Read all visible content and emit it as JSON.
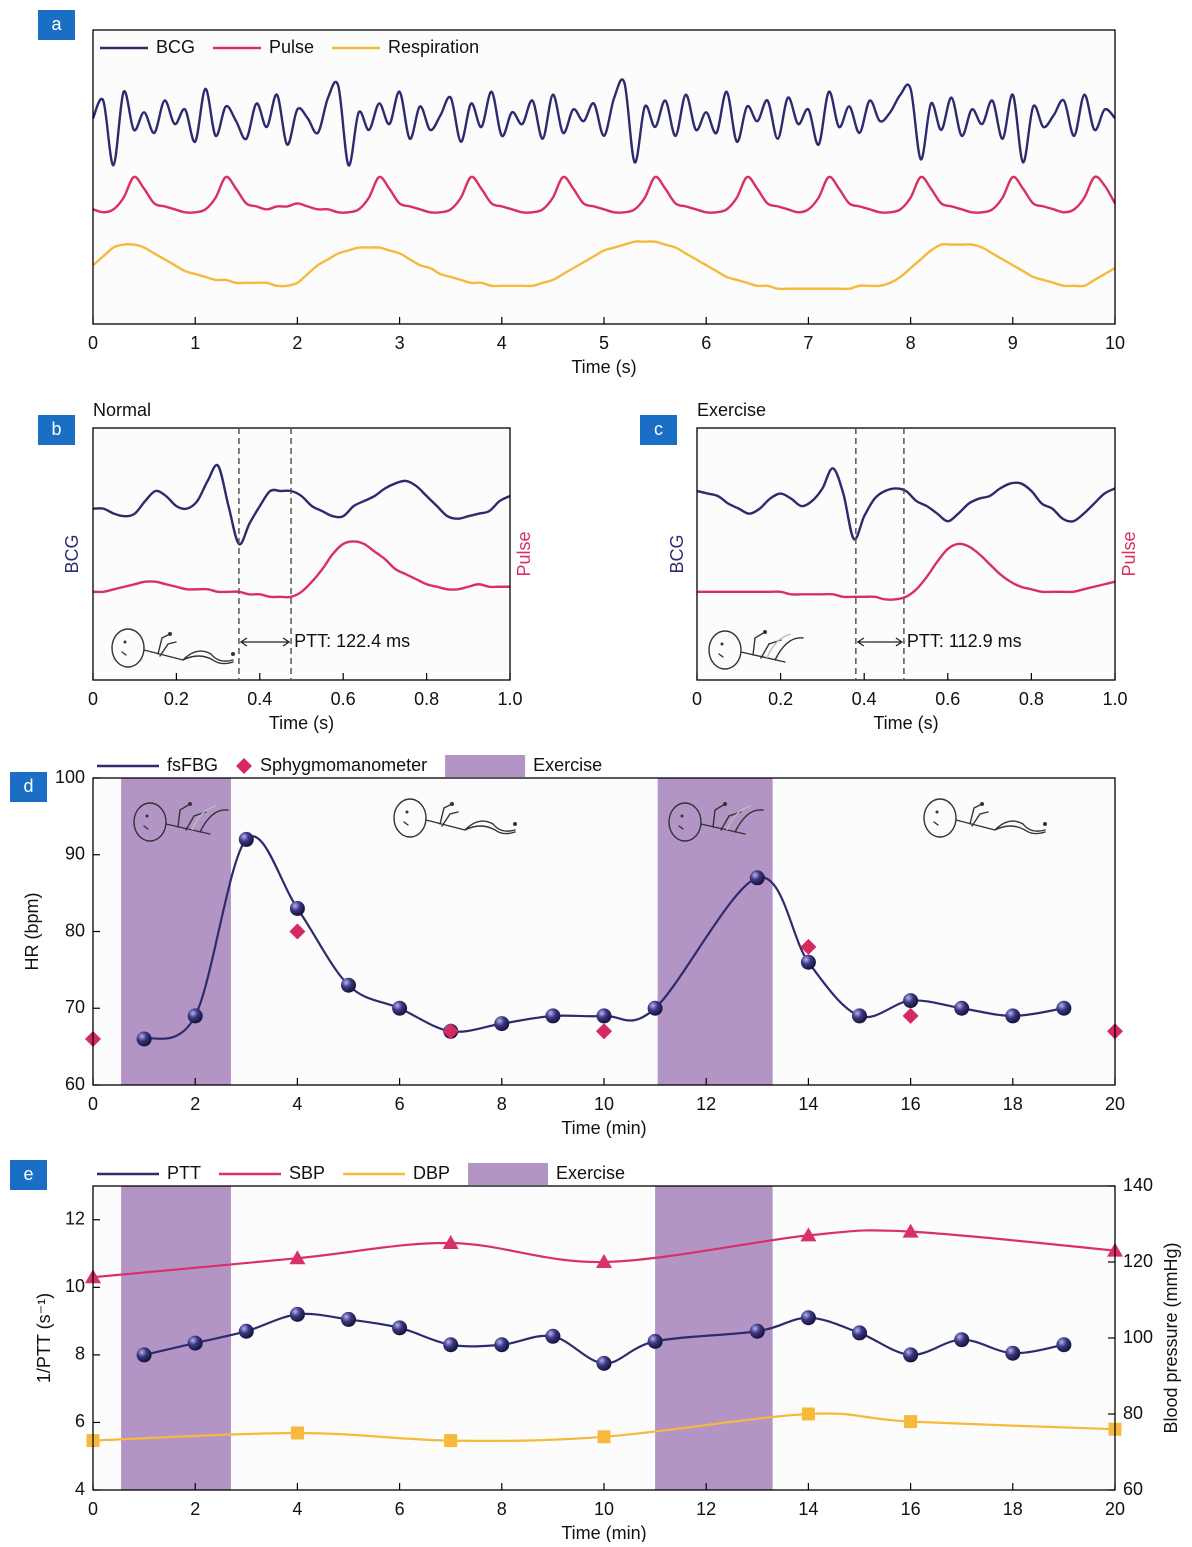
{
  "chart_data": [
    {
      "type": "line",
      "panel_label": "a",
      "x_label": "Time (s)",
      "legend": "inside",
      "xlim": [
        0,
        10
      ],
      "xticks": [
        0,
        1,
        2,
        3,
        4,
        5,
        6,
        7,
        8,
        9,
        10
      ],
      "ylim": [
        0,
        10
      ],
      "x": [
        0,
        0.1,
        0.2,
        0.3,
        0.4,
        0.5,
        0.6,
        0.7,
        0.8,
        0.9,
        1,
        1.1,
        1.2,
        1.3,
        1.4,
        1.5,
        1.6,
        1.7,
        1.8,
        1.9,
        2,
        2.1,
        2.2,
        2.3,
        2.4,
        2.5,
        2.6,
        2.7,
        2.8,
        2.9,
        3,
        3.1,
        3.2,
        3.3,
        3.4,
        3.5,
        3.6,
        3.7,
        3.8,
        3.9,
        4,
        4.1,
        4.2,
        4.3,
        4.4,
        4.5,
        4.6,
        4.7,
        4.8,
        4.9,
        5,
        5.1,
        5.2,
        5.3,
        5.4,
        5.5,
        5.6,
        5.7,
        5.8,
        5.9,
        6,
        6.1,
        6.2,
        6.3,
        6.4,
        6.5,
        6.6,
        6.7,
        6.8,
        6.9,
        7,
        7.1,
        7.2,
        7.3,
        7.4,
        7.5,
        7.6,
        7.7,
        7.8,
        7.9,
        8,
        8.1,
        8.2,
        8.3,
        8.4,
        8.5,
        8.6,
        8.7,
        8.8,
        8.9,
        9,
        9.1,
        9.2,
        9.3,
        9.4,
        9.5,
        9.6,
        9.7,
        9.8,
        9.9,
        10
      ],
      "series": [
        {
          "name": "BCG",
          "color": "#2d2b6f",
          "values": [
            7.0,
            7.6,
            5.4,
            7.9,
            6.6,
            7.2,
            6.5,
            7.6,
            6.8,
            7.3,
            6.2,
            8.0,
            6.4,
            7.4,
            6.9,
            6.3,
            7.5,
            6.7,
            7.8,
            6.1,
            7.3,
            7.0,
            6.5,
            7.7,
            8.1,
            5.4,
            7.2,
            6.6,
            7.5,
            6.8,
            7.9,
            6.3,
            7.4,
            6.6,
            7.1,
            7.7,
            6.2,
            7.5,
            6.7,
            7.9,
            6.4,
            7.2,
            6.8,
            7.6,
            6.3,
            7.8,
            6.5,
            7.3,
            6.9,
            7.5,
            6.4,
            7.7,
            8.2,
            5.5,
            7.4,
            6.7,
            7.6,
            6.4,
            7.8,
            6.6,
            7.2,
            6.5,
            7.9,
            6.2,
            7.4,
            6.9,
            7.6,
            6.3,
            7.7,
            6.8,
            7.3,
            6.1,
            7.9,
            6.7,
            7.4,
            6.5,
            7.6,
            6.9,
            7.2,
            7.8,
            8.0,
            5.6,
            7.5,
            6.6,
            7.7,
            6.4,
            7.3,
            6.8,
            7.6,
            6.3,
            7.8,
            5.5,
            7.4,
            6.7,
            7.1,
            7.6,
            6.4,
            7.8,
            6.6,
            7.3,
            7.0
          ]
        },
        {
          "name": "Pulse",
          "color": "#d9305f",
          "values": [
            3.9,
            3.8,
            3.9,
            4.3,
            5.0,
            4.6,
            4.1,
            4.0,
            3.9,
            3.8,
            3.8,
            3.9,
            4.3,
            5.0,
            4.6,
            4.1,
            4.0,
            3.9,
            4.0,
            4.0,
            4.1,
            4.0,
            3.9,
            3.9,
            3.8,
            3.8,
            3.9,
            4.3,
            5.0,
            4.6,
            4.1,
            4.0,
            3.9,
            3.8,
            3.8,
            3.9,
            4.3,
            5.0,
            4.6,
            4.1,
            4.0,
            3.9,
            3.8,
            3.8,
            3.9,
            4.3,
            5.0,
            4.6,
            4.1,
            4.0,
            3.9,
            3.8,
            3.8,
            3.9,
            4.3,
            5.0,
            4.6,
            4.1,
            4.0,
            3.9,
            3.8,
            3.8,
            3.9,
            4.3,
            5.0,
            4.6,
            4.1,
            4.0,
            3.9,
            3.8,
            3.9,
            4.3,
            5.0,
            4.6,
            4.1,
            4.0,
            3.9,
            3.8,
            3.8,
            3.9,
            4.3,
            5.0,
            4.6,
            4.1,
            4.0,
            3.9,
            3.8,
            3.8,
            3.9,
            4.3,
            5.0,
            4.6,
            4.1,
            4.0,
            3.9,
            3.8,
            3.9,
            4.3,
            5.0,
            4.7,
            4.1
          ]
        },
        {
          "name": "Respiration",
          "color": "#f6b93b",
          "values": [
            2.0,
            2.3,
            2.6,
            2.7,
            2.7,
            2.6,
            2.4,
            2.2,
            2.0,
            1.8,
            1.7,
            1.6,
            1.5,
            1.5,
            1.4,
            1.4,
            1.4,
            1.4,
            1.3,
            1.3,
            1.4,
            1.7,
            2.0,
            2.2,
            2.4,
            2.5,
            2.6,
            2.6,
            2.6,
            2.5,
            2.4,
            2.2,
            2.0,
            1.9,
            1.7,
            1.6,
            1.5,
            1.4,
            1.4,
            1.3,
            1.3,
            1.3,
            1.3,
            1.3,
            1.4,
            1.5,
            1.7,
            1.9,
            2.1,
            2.3,
            2.5,
            2.6,
            2.7,
            2.8,
            2.8,
            2.8,
            2.7,
            2.6,
            2.4,
            2.2,
            2.0,
            1.8,
            1.6,
            1.5,
            1.4,
            1.3,
            1.3,
            1.2,
            1.2,
            1.2,
            1.2,
            1.2,
            1.2,
            1.2,
            1.2,
            1.3,
            1.3,
            1.3,
            1.4,
            1.6,
            1.9,
            2.2,
            2.5,
            2.7,
            2.7,
            2.7,
            2.7,
            2.6,
            2.4,
            2.2,
            2.0,
            1.8,
            1.6,
            1.5,
            1.4,
            1.3,
            1.3,
            1.3,
            1.5,
            1.7,
            1.9
          ]
        }
      ]
    },
    {
      "type": "line",
      "panel_label": "b",
      "title": "Normal",
      "x_label": "Time (s)",
      "y_label": "BCG",
      "y2_label": "Pulse",
      "xlim": [
        0,
        1
      ],
      "xticks": [
        0,
        0.2,
        0.4,
        0.6,
        0.8,
        {
          "value": 1,
          "label": "1.0"
        }
      ],
      "ylim": [
        0,
        10
      ],
      "x": [
        0,
        0.025,
        0.05,
        0.075,
        0.1,
        0.125,
        0.15,
        0.175,
        0.2,
        0.225,
        0.25,
        0.275,
        0.3,
        0.325,
        0.35,
        0.375,
        0.4,
        0.425,
        0.45,
        0.475,
        0.5,
        0.525,
        0.55,
        0.575,
        0.6,
        0.625,
        0.65,
        0.675,
        0.7,
        0.725,
        0.75,
        0.775,
        0.8,
        0.825,
        0.85,
        0.875,
        0.9,
        0.925,
        0.95,
        0.975,
        1
      ],
      "series": [
        {
          "name": "BCG",
          "color": "#2d2b6f",
          "values": [
            6.8,
            6.8,
            6.6,
            6.5,
            6.6,
            7.1,
            7.5,
            7.3,
            6.9,
            6.8,
            7.1,
            7.9,
            8.5,
            6.9,
            5.4,
            6.2,
            6.9,
            7.5,
            7.5,
            7.5,
            7.3,
            6.9,
            6.7,
            6.5,
            6.5,
            6.9,
            7.1,
            7.3,
            7.6,
            7.8,
            7.9,
            7.7,
            7.3,
            6.9,
            6.5,
            6.4,
            6.5,
            6.6,
            6.7,
            7.1,
            7.3
          ]
        },
        {
          "name": "Pulse",
          "color": "#d9305f",
          "values": [
            3.5,
            3.5,
            3.6,
            3.7,
            3.8,
            3.9,
            3.9,
            3.8,
            3.7,
            3.6,
            3.6,
            3.6,
            3.5,
            3.5,
            3.5,
            3.4,
            3.4,
            3.3,
            3.3,
            3.3,
            3.5,
            3.9,
            4.4,
            5.0,
            5.4,
            5.5,
            5.4,
            5.1,
            4.8,
            4.4,
            4.2,
            4.0,
            3.8,
            3.7,
            3.6,
            3.6,
            3.7,
            3.8,
            3.7,
            3.7,
            3.7
          ]
        }
      ],
      "vlines": [
        0.35,
        0.475
      ],
      "annotation": "PTT: 122.4 ms"
    },
    {
      "type": "line",
      "panel_label": "c",
      "title": "Exercise",
      "x_label": "Time (s)",
      "y_label": "BCG",
      "y2_label": "Pulse",
      "xlim": [
        0,
        1
      ],
      "xticks": [
        0,
        0.2,
        0.4,
        0.6,
        0.8,
        {
          "value": 1,
          "label": "1.0"
        }
      ],
      "ylim": [
        0,
        10
      ],
      "x": [
        0,
        0.025,
        0.05,
        0.075,
        0.1,
        0.125,
        0.15,
        0.175,
        0.2,
        0.225,
        0.25,
        0.275,
        0.3,
        0.325,
        0.35,
        0.375,
        0.4,
        0.425,
        0.45,
        0.475,
        0.5,
        0.525,
        0.55,
        0.575,
        0.6,
        0.625,
        0.65,
        0.675,
        0.7,
        0.725,
        0.75,
        0.775,
        0.8,
        0.825,
        0.85,
        0.875,
        0.9,
        0.925,
        0.95,
        0.975,
        1
      ],
      "series": [
        {
          "name": "BCG",
          "color": "#2d2b6f",
          "values": [
            7.5,
            7.4,
            7.3,
            7.0,
            6.8,
            6.6,
            6.8,
            7.2,
            7.4,
            7.2,
            6.9,
            7.1,
            7.6,
            8.4,
            7.4,
            5.6,
            6.5,
            7.2,
            7.5,
            7.6,
            7.5,
            7.1,
            6.9,
            6.6,
            6.3,
            6.6,
            7.0,
            7.2,
            7.3,
            7.6,
            7.8,
            7.8,
            7.5,
            7.0,
            6.8,
            6.4,
            6.3,
            6.6,
            7.0,
            7.4,
            7.6
          ]
        },
        {
          "name": "Pulse",
          "color": "#d9305f",
          "values": [
            3.5,
            3.5,
            3.5,
            3.5,
            3.5,
            3.5,
            3.5,
            3.5,
            3.5,
            3.4,
            3.4,
            3.4,
            3.4,
            3.4,
            3.3,
            3.3,
            3.3,
            3.3,
            3.2,
            3.2,
            3.3,
            3.6,
            4.1,
            4.7,
            5.2,
            5.4,
            5.3,
            5.0,
            4.6,
            4.2,
            3.9,
            3.7,
            3.6,
            3.5,
            3.5,
            3.5,
            3.5,
            3.6,
            3.7,
            3.8,
            3.9
          ]
        }
      ],
      "vlines": [
        0.38,
        0.495
      ],
      "annotation": "PTT: 112.9 ms"
    },
    {
      "type": "scatter",
      "panel_label": "d",
      "x_label": "Time (min)",
      "y_label": "HR (bpm)",
      "legend": "above",
      "xlim": [
        0,
        20
      ],
      "xticks": [
        0,
        2,
        4,
        6,
        8,
        10,
        12,
        14,
        16,
        18,
        20
      ],
      "ylim": [
        60,
        100
      ],
      "yticks": [
        60,
        70,
        80,
        90,
        100
      ],
      "series": [
        {
          "name": "fsFBG",
          "color": "#2d2b6f",
          "marker": "sphere",
          "line": true,
          "x": [
            1,
            2,
            3,
            4,
            5,
            6,
            7,
            8,
            9,
            10,
            11,
            13,
            14,
            15,
            16,
            17,
            18,
            19
          ],
          "values": [
            66,
            69,
            92,
            83,
            73,
            70,
            67,
            68,
            69,
            69,
            70,
            87,
            76,
            69,
            71,
            70,
            69,
            70
          ]
        },
        {
          "name": "Sphygmomanometer",
          "color": "#d42a5f",
          "marker": "diamond",
          "line": false,
          "x": [
            0,
            4,
            7,
            10,
            14,
            16,
            20
          ],
          "values": [
            66,
            80,
            67,
            67,
            78,
            69,
            67
          ]
        }
      ],
      "bands": {
        "name": "Exercise",
        "color": "#b395c5",
        "ranges": [
          [
            0.55,
            2.7
          ],
          [
            11.05,
            13.3
          ]
        ]
      }
    },
    {
      "type": "scatter",
      "panel_label": "e",
      "x_label": "Time (min)",
      "y_label": "1/PTT (s⁻¹)",
      "y2_label": "Blood pressure (mmHg)",
      "legend": "above",
      "xlim": [
        0,
        20
      ],
      "xticks": [
        0,
        2,
        4,
        6,
        8,
        10,
        12,
        14,
        16,
        18,
        20
      ],
      "ylim": [
        4,
        13
      ],
      "yticks": [
        4,
        6,
        8,
        10,
        12
      ],
      "y2lim": [
        60,
        140
      ],
      "y2ticks": [
        60,
        80,
        100,
        120,
        140
      ],
      "series": [
        {
          "name": "PTT",
          "color": "#2d2b6f",
          "marker": "sphere",
          "line": true,
          "x": [
            1,
            2,
            3,
            4,
            5,
            6,
            7,
            8,
            9,
            10,
            11,
            13,
            14,
            15,
            16,
            17,
            18,
            19
          ],
          "values": [
            8.0,
            8.35,
            8.7,
            9.2,
            9.05,
            8.8,
            8.3,
            8.3,
            8.55,
            7.75,
            8.4,
            8.7,
            9.1,
            8.65,
            8.0,
            8.45,
            8.05,
            8.3
          ]
        },
        {
          "name": "SBP",
          "color": "#d9306a",
          "marker": "triangle",
          "line": true,
          "axis": "y2",
          "x": [
            0,
            4,
            7,
            10,
            14,
            16,
            20
          ],
          "values": [
            116,
            121,
            125,
            120,
            127,
            128,
            123
          ]
        },
        {
          "name": "DBP",
          "color": "#f6b93b",
          "marker": "square",
          "line": true,
          "axis": "y2",
          "x": [
            0,
            4,
            7,
            10,
            14,
            16,
            20
          ],
          "values": [
            73,
            75,
            73,
            74,
            80,
            78,
            76
          ]
        }
      ],
      "bands": {
        "name": "Exercise",
        "color": "#b395c5",
        "ranges": [
          [
            0.55,
            2.7
          ],
          [
            11,
            13.3
          ]
        ]
      }
    }
  ]
}
